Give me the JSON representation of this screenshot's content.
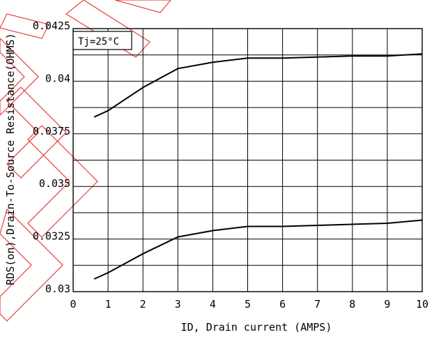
{
  "chart_data": {
    "type": "line",
    "xlabel": "ID, Drain current (AMPS)",
    "ylabel": "RDS(on),Drain-To-Source Resistance(OHMS)",
    "annotation": "Tj=25°C",
    "xlim": [
      0,
      10
    ],
    "ylim": [
      0.03,
      0.0425
    ],
    "x_ticks": [
      {
        "value": 0,
        "label": "0"
      },
      {
        "value": 1,
        "label": "1"
      },
      {
        "value": 2,
        "label": "2"
      },
      {
        "value": 3,
        "label": "3"
      },
      {
        "value": 4,
        "label": "4"
      },
      {
        "value": 5,
        "label": "5"
      },
      {
        "value": 6,
        "label": "6"
      },
      {
        "value": 7,
        "label": "7"
      },
      {
        "value": 8,
        "label": "8"
      },
      {
        "value": 9,
        "label": "9"
      },
      {
        "value": 10,
        "label": "10"
      }
    ],
    "y_ticks": [
      {
        "value": 0.03,
        "label": "0.03"
      },
      {
        "value": 0.0325,
        "label": "0.0325"
      },
      {
        "value": 0.035,
        "label": "0.035"
      },
      {
        "value": 0.0375,
        "label": "0.0375"
      },
      {
        "value": 0.04,
        "label": "0.04"
      },
      {
        "value": 0.0425,
        "label": "0.0425"
      }
    ],
    "grid": true,
    "series": [
      {
        "x": [
          0.6,
          1,
          2,
          3,
          4,
          5,
          6,
          7,
          8,
          9,
          10
        ],
        "y": [
          0.0383,
          0.0386,
          0.0397,
          0.0406,
          0.0409,
          0.0411,
          0.0411,
          0.04115,
          0.0412,
          0.0412,
          0.0413
        ]
      },
      {
        "x": [
          0.6,
          1,
          2,
          3,
          4,
          5,
          6,
          7,
          8,
          9,
          10
        ],
        "y": [
          0.0306,
          0.0309,
          0.0318,
          0.0326,
          0.0329,
          0.0331,
          0.0331,
          0.03315,
          0.0332,
          0.03325,
          0.0334
        ]
      }
    ],
    "colors": {
      "line": "#000000",
      "grid": "#000000",
      "watermark": "#e53935"
    }
  }
}
